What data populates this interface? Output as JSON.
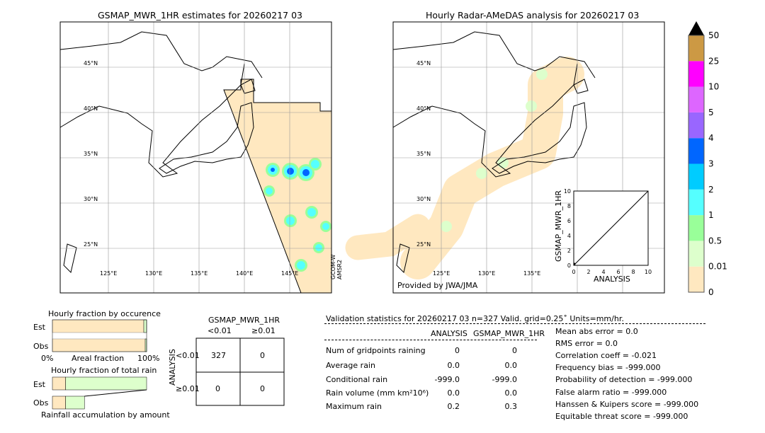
{
  "chart_data": [
    {
      "type": "map",
      "title": "GSMAP_MWR_1HR estimates for 20260217 03",
      "lat_labels": [
        "45°N",
        "40°N",
        "35°N",
        "30°N",
        "25°N"
      ],
      "lon_labels": [
        "125°E",
        "130°E",
        "135°E",
        "140°E",
        "145°E"
      ],
      "sensor_label": [
        "GCOM-W",
        "AMSR2"
      ]
    },
    {
      "type": "map",
      "title": "Hourly Radar-AMeDAS analysis for 20260217 03",
      "lat_labels": [
        "45°N",
        "40°N",
        "35°N",
        "30°N",
        "25°N"
      ],
      "lon_labels": [
        "125°E",
        "130°E",
        "135°E"
      ],
      "credit": "Provided by JWA/JMA"
    },
    {
      "type": "scatter",
      "xlabel": "ANALYSIS",
      "ylabel": "GSMAP_MWR_1HR",
      "xlim": [
        0,
        10
      ],
      "ylim": [
        0,
        10
      ],
      "ticks": [
        "0",
        "2",
        "4",
        "6",
        "8",
        "10"
      ],
      "diagonal": true
    },
    {
      "type": "colorbar",
      "ticks": [
        "0",
        "0.01",
        "0.5",
        "1",
        "2",
        "3",
        "4",
        "5",
        "10",
        "25",
        "50"
      ],
      "colors": [
        "#ffe8c0",
        "#ddffcc",
        "#99ff99",
        "#55ffff",
        "#00ccff",
        "#0066ff",
        "#9966ff",
        "#dd66ff",
        "#ff00ff",
        "#cc9944"
      ],
      "extend": "max"
    },
    {
      "type": "bar",
      "title": "Hourly fraction by occurence",
      "categories": [
        "Est",
        "Obs"
      ],
      "xlabel": "Areal fraction",
      "xticks": [
        "0%",
        "100%"
      ],
      "series": [
        {
          "values": [
            0.97,
            0.985
          ],
          "color": "#ffe8c0"
        },
        {
          "values": [
            0.03,
            0.015
          ],
          "color": "#ddffcc"
        }
      ]
    },
    {
      "type": "bar",
      "title": "Hourly fraction of total rain",
      "categories": [
        "Est",
        "Obs"
      ],
      "xlabel": "Rainfall accumulation by amount",
      "series": [
        {
          "values": [
            0.14,
            0.14
          ],
          "color": "#ffe8c0"
        },
        {
          "values": [
            0.86,
            0.2
          ],
          "color": "#ddffcc"
        }
      ]
    },
    {
      "type": "table",
      "title": "GSMAP_MWR_1HR",
      "col_headers": [
        "<0.01",
        "≥0.01"
      ],
      "row_axis": "ANALYSIS",
      "row_headers": [
        "<0.01",
        "≥0.01"
      ],
      "cells": [
        [
          "327",
          "0"
        ],
        [
          "0",
          "0"
        ]
      ]
    }
  ],
  "stats": {
    "header": "Validation statistics for 20260217 03  n=327 Valid. grid=0.25˚ Units=mm/hr.",
    "col_headers": [
      "ANALYSIS",
      "GSMAP_MWR_1HR"
    ],
    "rows": [
      {
        "label": "Num of gridpoints raining",
        "a": "0",
        "g": "0"
      },
      {
        "label": "Average rain",
        "a": "0.0",
        "g": "0.0"
      },
      {
        "label": "Conditional rain",
        "a": "-999.0",
        "g": "-999.0"
      },
      {
        "label": "Rain volume (mm km²10⁶)",
        "a": "0.0",
        "g": "0.0"
      },
      {
        "label": "Maximum rain",
        "a": "0.2",
        "g": "0.3"
      }
    ],
    "scores": [
      "Mean abs error =    0.0",
      "RMS error =    0.0",
      "Correlation coeff = -0.021",
      "Frequency bias = -999.000",
      "Probability of detection = -999.000",
      "False alarm ratio = -999.000",
      "Hanssen & Kuipers score = -999.000",
      "Equitable threat score = -999.000"
    ]
  }
}
